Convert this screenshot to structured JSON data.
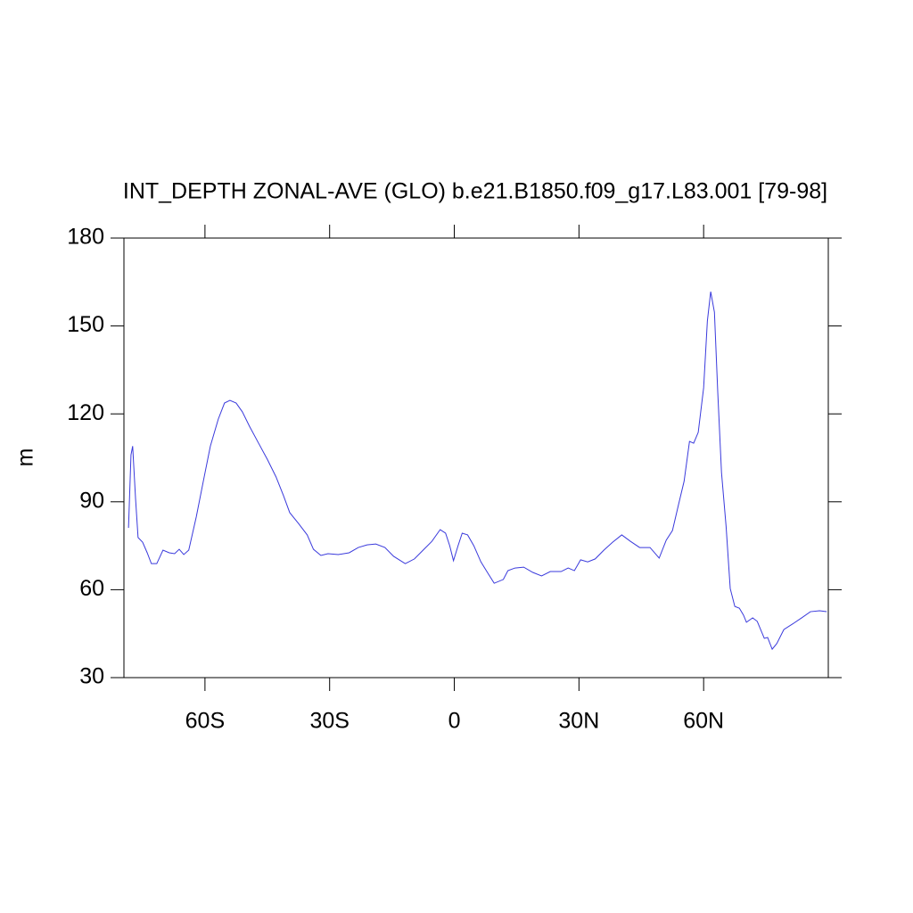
{
  "chart_data": {
    "type": "line",
    "title": "INT_DEPTH ZONAL-AVE (GLO) b.e21.B1850.f09_g17.L83.001 [79-98]",
    "ylabel": "m",
    "color": "#3a3adc",
    "xlim": [
      -79.5,
      90
    ],
    "ylim": [
      30,
      180
    ],
    "xticks": [
      {
        "value": -60,
        "label": "60S"
      },
      {
        "value": -30,
        "label": "30S"
      },
      0,
      {
        "value": 30,
        "label": "30N"
      },
      {
        "value": 60,
        "label": "60N"
      }
    ],
    "yticks": [
      30,
      60,
      90,
      120,
      150,
      180
    ],
    "x": [
      -78.4,
      -77.8,
      -77.4,
      -76.7,
      -76.1,
      -75,
      -73.9,
      -72.9,
      -71.6,
      -70.1,
      -68.6,
      -67.3,
      -66.2,
      -65.1,
      -63.9,
      -62.1,
      -60.4,
      -58.7,
      -56.8,
      -55.3,
      -54,
      -52.5,
      -51,
      -49.3,
      -47.1,
      -45,
      -42.9,
      -41.1,
      -39.6,
      -37.5,
      -35.4,
      -33.9,
      -32.1,
      -30.4,
      -27.9,
      -25.3,
      -23.1,
      -21,
      -18.9,
      -16.7,
      -14.6,
      -11.8,
      -9.6,
      -7.5,
      -5.4,
      -3.4,
      -2.1,
      -1.1,
      -0.2,
      0.9,
      1.9,
      3.2,
      4.7,
      6.4,
      8.1,
      9.6,
      11.8,
      12.9,
      14.6,
      16.7,
      18.9,
      21,
      23.1,
      25.7,
      27.4,
      28.9,
      30.4,
      32.1,
      33.9,
      36,
      38.1,
      40.3,
      42.4,
      44.6,
      47.1,
      49.3,
      51,
      52.5,
      54,
      55.3,
      56.6,
      57.6,
      58.7,
      60,
      60.9,
      61.7,
      62.6,
      63.4,
      64.3,
      65.4,
      66.4,
      67.5,
      68.6,
      69.6,
      70.3,
      71.8,
      72.9,
      74.6,
      75.4,
      76.5,
      77.6,
      79.3,
      81.4,
      83.6,
      85.7,
      87.9,
      89.6
    ],
    "y": [
      81.1,
      106,
      109,
      91,
      77.8,
      76.2,
      72.6,
      68.9,
      68.9,
      73.5,
      72.6,
      72.3,
      73.8,
      72,
      73.5,
      84.8,
      97,
      109,
      118.2,
      123.7,
      124.6,
      123.7,
      120.7,
      115.8,
      110,
      104.5,
      98.5,
      92.1,
      86.3,
      82.6,
      78.7,
      73.8,
      71.7,
      72.3,
      72,
      72.6,
      74.4,
      75.3,
      75.6,
      74.4,
      71.4,
      68.9,
      70.5,
      73.5,
      76.5,
      80.5,
      79.3,
      75,
      69.9,
      75,
      79.3,
      78.7,
      75,
      69.5,
      65.6,
      62.2,
      63.5,
      66.5,
      67.4,
      67.7,
      65.9,
      64.7,
      66.2,
      66.2,
      67.4,
      66.5,
      70.2,
      69.5,
      70.5,
      73.5,
      76.2,
      78.7,
      76.5,
      74.4,
      74.4,
      70.8,
      76.9,
      80.2,
      89.3,
      97,
      110.6,
      110,
      113.7,
      128.9,
      151.7,
      161.7,
      154.7,
      127.4,
      100,
      81.7,
      60.4,
      54.3,
      53.7,
      51.3,
      48.9,
      50.4,
      49.2,
      43.4,
      43.7,
      39.7,
      41.6,
      46.4,
      48.3,
      50.4,
      52.5,
      52.8,
      52.5
    ]
  }
}
